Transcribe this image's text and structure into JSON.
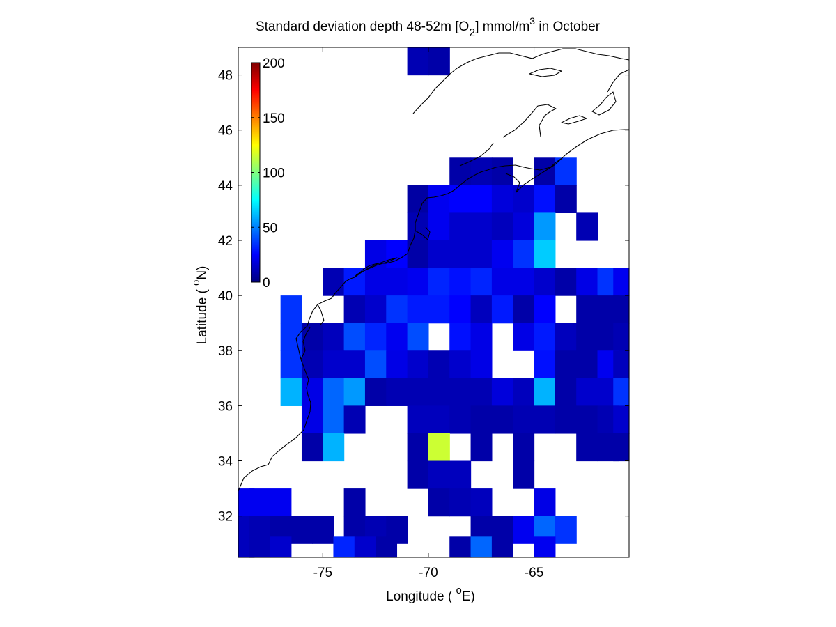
{
  "chart_data": {
    "type": "heatmap",
    "title_parts": {
      "pre": "Standard deviation depth 48-52m [O",
      "sub": "2",
      "mid": "] mmol/m",
      "sup": "3",
      "post": " in October"
    },
    "xlabel_parts": {
      "pre": "Longitude ( ",
      "sup": "o",
      "post": "E)"
    },
    "ylabel_parts": {
      "pre": "Latitude ( ",
      "sup": "o",
      "post": "N)"
    },
    "xlim": [
      -79,
      -60.5
    ],
    "ylim": [
      30.5,
      49
    ],
    "xticks": [
      -75,
      -70,
      -65
    ],
    "xtick_labels": [
      "-75",
      "-70",
      "-65"
    ],
    "yticks": [
      32,
      34,
      36,
      38,
      40,
      42,
      44,
      46,
      48
    ],
    "ytick_labels": [
      "32",
      "34",
      "36",
      "38",
      "40",
      "42",
      "44",
      "46",
      "48"
    ],
    "colorbar": {
      "colormap": "jet",
      "range": [
        0,
        200
      ],
      "ticks": [
        0,
        50,
        100,
        150,
        200
      ],
      "tick_labels": [
        "0",
        "50",
        "100",
        "150",
        "200"
      ],
      "placement": "upper-left inside axes"
    },
    "cell_size_deg": [
      1,
      1
    ],
    "cells": [
      [
        -70.5,
        48.5,
        10
      ],
      [
        -69.5,
        48.5,
        8
      ],
      [
        -68.5,
        44.5,
        8
      ],
      [
        -67.5,
        44.5,
        10
      ],
      [
        -66.5,
        44.5,
        8
      ],
      [
        -64.5,
        44.5,
        8
      ],
      [
        -63.5,
        44.5,
        35
      ],
      [
        -70.5,
        43.5,
        7
      ],
      [
        -69.5,
        43.5,
        22
      ],
      [
        -68.5,
        43.5,
        25
      ],
      [
        -67.5,
        43.5,
        25
      ],
      [
        -66.5,
        43.5,
        18
      ],
      [
        -65.5,
        43.5,
        15
      ],
      [
        -64.5,
        43.5,
        28
      ],
      [
        -63.5,
        43.5,
        8
      ],
      [
        -70.5,
        42.5,
        10
      ],
      [
        -69.5,
        42.5,
        22
      ],
      [
        -68.5,
        42.5,
        15
      ],
      [
        -67.5,
        42.5,
        15
      ],
      [
        -66.5,
        42.5,
        12
      ],
      [
        -65.5,
        42.5,
        18
      ],
      [
        -64.5,
        42.5,
        55
      ],
      [
        -62.5,
        42.5,
        10
      ],
      [
        -72.5,
        41.5,
        20
      ],
      [
        -71.5,
        41.5,
        25
      ],
      [
        -70.5,
        41.5,
        8
      ],
      [
        -69.5,
        41.5,
        15
      ],
      [
        -68.5,
        41.5,
        15
      ],
      [
        -67.5,
        41.5,
        15
      ],
      [
        -66.5,
        41.5,
        22
      ],
      [
        -65.5,
        41.5,
        35
      ],
      [
        -64.5,
        41.5,
        65
      ],
      [
        -74.5,
        40.5,
        10
      ],
      [
        -73.5,
        40.5,
        30
      ],
      [
        -72.5,
        40.5,
        20
      ],
      [
        -71.5,
        40.5,
        20
      ],
      [
        -70.5,
        40.5,
        22
      ],
      [
        -69.5,
        40.5,
        32
      ],
      [
        -68.5,
        40.5,
        28
      ],
      [
        -67.5,
        40.5,
        32
      ],
      [
        -66.5,
        40.5,
        20
      ],
      [
        -65.5,
        40.5,
        20
      ],
      [
        -64.5,
        40.5,
        15
      ],
      [
        -63.5,
        40.5,
        8
      ],
      [
        -62.5,
        40.5,
        20
      ],
      [
        -61.5,
        40.5,
        35
      ],
      [
        -60.75,
        40.5,
        22
      ],
      [
        -76.5,
        39.5,
        35
      ],
      [
        -73.5,
        39.5,
        10
      ],
      [
        -72.5,
        39.5,
        15
      ],
      [
        -71.5,
        39.5,
        35
      ],
      [
        -70.5,
        39.5,
        30
      ],
      [
        -69.5,
        39.5,
        30
      ],
      [
        -68.5,
        39.5,
        25
      ],
      [
        -67.5,
        39.5,
        12
      ],
      [
        -66.5,
        39.5,
        30
      ],
      [
        -65.5,
        39.5,
        8
      ],
      [
        -64.5,
        39.5,
        25
      ],
      [
        -62.5,
        39.5,
        8
      ],
      [
        -61.5,
        39.5,
        8
      ],
      [
        -60.75,
        39.5,
        8
      ],
      [
        -76.5,
        38.5,
        35
      ],
      [
        -75.5,
        38.5,
        8
      ],
      [
        -74.5,
        38.5,
        12
      ],
      [
        -73.5,
        38.5,
        40
      ],
      [
        -72.5,
        38.5,
        32
      ],
      [
        -71.5,
        38.5,
        22
      ],
      [
        -70.5,
        38.5,
        40
      ],
      [
        -68.5,
        38.5,
        28
      ],
      [
        -67.5,
        38.5,
        20
      ],
      [
        -65.5,
        38.5,
        20
      ],
      [
        -64.5,
        38.5,
        30
      ],
      [
        -63.5,
        38.5,
        12
      ],
      [
        -62.5,
        38.5,
        8
      ],
      [
        -61.5,
        38.5,
        8
      ],
      [
        -60.75,
        38.5,
        10
      ],
      [
        -76.5,
        37.5,
        35
      ],
      [
        -75.5,
        37.5,
        10
      ],
      [
        -74.5,
        37.5,
        15
      ],
      [
        -73.5,
        37.5,
        15
      ],
      [
        -72.5,
        37.5,
        40
      ],
      [
        -71.5,
        37.5,
        20
      ],
      [
        -70.5,
        37.5,
        15
      ],
      [
        -69.5,
        37.5,
        10
      ],
      [
        -68.5,
        37.5,
        15
      ],
      [
        -67.5,
        37.5,
        20
      ],
      [
        -64.5,
        37.5,
        28
      ],
      [
        -63.5,
        37.5,
        8
      ],
      [
        -62.5,
        37.5,
        8
      ],
      [
        -61.5,
        37.5,
        22
      ],
      [
        -60.75,
        37.5,
        12
      ],
      [
        -76.5,
        36.5,
        60
      ],
      [
        -75.5,
        36.5,
        20
      ],
      [
        -74.5,
        36.5,
        45
      ],
      [
        -73.5,
        36.5,
        55
      ],
      [
        -72.5,
        36.5,
        8
      ],
      [
        -71.5,
        36.5,
        10
      ],
      [
        -70.5,
        36.5,
        10
      ],
      [
        -69.5,
        36.5,
        10
      ],
      [
        -68.5,
        36.5,
        10
      ],
      [
        -67.5,
        36.5,
        10
      ],
      [
        -66.5,
        36.5,
        18
      ],
      [
        -65.5,
        36.5,
        12
      ],
      [
        -64.5,
        36.5,
        60
      ],
      [
        -63.5,
        36.5,
        8
      ],
      [
        -62.5,
        36.5,
        15
      ],
      [
        -61.5,
        36.5,
        15
      ],
      [
        -60.75,
        36.5,
        35
      ],
      [
        -75.5,
        35.5,
        20
      ],
      [
        -74.5,
        35.5,
        45
      ],
      [
        -73.5,
        35.5,
        10
      ],
      [
        -70.5,
        35.5,
        12
      ],
      [
        -69.5,
        35.5,
        12
      ],
      [
        -68.5,
        35.5,
        10
      ],
      [
        -67.5,
        35.5,
        8
      ],
      [
        -66.5,
        35.5,
        8
      ],
      [
        -65.5,
        35.5,
        10
      ],
      [
        -64.5,
        35.5,
        10
      ],
      [
        -63.5,
        35.5,
        8
      ],
      [
        -62.5,
        35.5,
        8
      ],
      [
        -61.5,
        35.5,
        10
      ],
      [
        -60.75,
        35.5,
        15
      ],
      [
        -75.5,
        34.5,
        8
      ],
      [
        -74.5,
        34.5,
        60
      ],
      [
        -70.5,
        34.5,
        8
      ],
      [
        -69.5,
        34.5,
        115
      ],
      [
        -67.5,
        34.5,
        8
      ],
      [
        -65.5,
        34.5,
        8
      ],
      [
        -62.5,
        34.5,
        8
      ],
      [
        -61.5,
        34.5,
        8
      ],
      [
        -60.75,
        34.5,
        8
      ],
      [
        -70.5,
        33.5,
        8
      ],
      [
        -69.5,
        33.5,
        12
      ],
      [
        -68.5,
        33.5,
        12
      ],
      [
        -65.5,
        33.5,
        8
      ],
      [
        -78.75,
        32.5,
        22
      ],
      [
        -78,
        32.5,
        22
      ],
      [
        -77,
        32.5,
        22
      ],
      [
        -73.5,
        32.5,
        8
      ],
      [
        -69.5,
        32.5,
        8
      ],
      [
        -68.5,
        32.5,
        10
      ],
      [
        -67.5,
        32.5,
        12
      ],
      [
        -64.5,
        32.5,
        20
      ],
      [
        -78.75,
        31.5,
        12
      ],
      [
        -78,
        31.5,
        10
      ],
      [
        -77,
        31.5,
        8
      ],
      [
        -76,
        31.5,
        8
      ],
      [
        -75,
        31.5,
        8
      ],
      [
        -73.5,
        31.5,
        8
      ],
      [
        -72.5,
        31.5,
        10
      ],
      [
        -71.5,
        31.5,
        8
      ],
      [
        -67.5,
        31.5,
        8
      ],
      [
        -66.5,
        31.5,
        8
      ],
      [
        -65.5,
        31.5,
        22
      ],
      [
        -64.5,
        31.5,
        45
      ],
      [
        -63.5,
        31.5,
        35
      ],
      [
        -78.75,
        30.75,
        12
      ],
      [
        -78,
        30.75,
        10
      ],
      [
        -77,
        30.75,
        15
      ],
      [
        -74,
        30.75,
        32
      ],
      [
        -73,
        30.75,
        15
      ],
      [
        -72,
        30.75,
        8
      ],
      [
        -68.5,
        30.75,
        8
      ],
      [
        -67.5,
        30.75,
        45
      ],
      [
        -66.5,
        30.75,
        8
      ],
      [
        -64.5,
        30.75,
        22
      ]
    ]
  }
}
